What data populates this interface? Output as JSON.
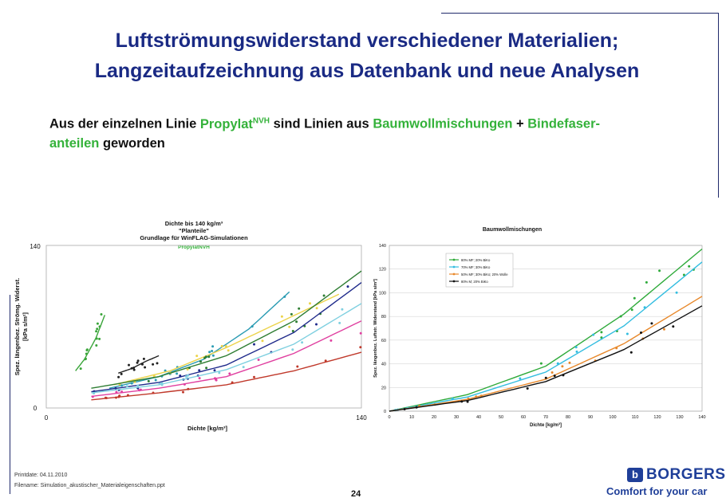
{
  "slide": {
    "title_line1": "Luftströmungswiderstand verschiedener Materialien;",
    "title_line2": "Langzeitaufzeichnung aus Datenbank und neue Analysen",
    "subtitle": {
      "p1": "Aus der einzelnen Linie ",
      "g1": "Propylat",
      "sup": "NVH",
      "p2": " sind Linien aus ",
      "g2": "Baumwollmischungen",
      "p3": " + ",
      "g3": "Bindefaser-",
      "g4": "anteilen",
      "p4": " geworden"
    },
    "print_date": "Printdate: 04.11.2010",
    "filename": "Filename: Simulation_akustischer_Materialeigenschaften.ppt",
    "page_number": "24",
    "logo_text": "BORGERS",
    "logo_mark": "b",
    "slogan": "Comfort for your car"
  },
  "chart_data": [
    {
      "type": "scatter",
      "title_lines": [
        "Dichte bis 140 kg/m³",
        "\"Planteile\"",
        "Grundlage für WinFLAG-Simulationen"
      ],
      "subtitle": "PropylatNVH",
      "xlabel": "Dichte [kg/m³]",
      "ylabel_lines": [
        "Spez. längenbez. Strömg. Widerst.",
        "[kPa s/m²]"
      ],
      "xlim": [
        0,
        140
      ],
      "ylim": [
        0,
        140
      ],
      "x_ticks": [
        "0",
        "140"
      ],
      "y_ticks": [
        "0",
        "140"
      ],
      "grid": false,
      "legend": "none",
      "series": [
        {
          "color": "#3aa53a",
          "x": [
            13,
            17,
            22,
            26
          ],
          "y": [
            32,
            42,
            60,
            80
          ]
        },
        {
          "color": "#222222",
          "x": [
            32,
            38,
            44,
            50
          ],
          "y": [
            30,
            34,
            40,
            45
          ]
        },
        {
          "color": "#2a9bb3",
          "x": [
            28,
            50,
            70,
            90,
            108
          ],
          "y": [
            17,
            27,
            42,
            68,
            100
          ]
        },
        {
          "color": "#ecd34a",
          "x": [
            30,
            55,
            80,
            105,
            130
          ],
          "y": [
            20,
            32,
            52,
            75,
            98
          ]
        },
        {
          "color": "#2e7d32",
          "x": [
            20,
            50,
            80,
            110,
            140
          ],
          "y": [
            17,
            27,
            45,
            75,
            118
          ]
        },
        {
          "color": "#1f2a8b",
          "x": [
            20,
            50,
            80,
            110,
            140
          ],
          "y": [
            14,
            22,
            37,
            65,
            108
          ]
        },
        {
          "color": "#7fd0e0",
          "x": [
            20,
            50,
            80,
            110,
            140
          ],
          "y": [
            13,
            20,
            33,
            55,
            90
          ]
        },
        {
          "color": "#e040a0",
          "x": [
            20,
            50,
            80,
            110,
            140
          ],
          "y": [
            10,
            17,
            27,
            47,
            75
          ]
        },
        {
          "color": "#c0392b",
          "x": [
            20,
            50,
            80,
            110,
            140
          ],
          "y": [
            7,
            13,
            20,
            32,
            48
          ]
        }
      ]
    },
    {
      "type": "scatter",
      "title": "Baumwollmischungen",
      "xlabel": "Dichte [kg/m³]",
      "ylabel": "Spez. längenbez. Luftstr. Widerstand [kPa s/m²]",
      "xlim": [
        0,
        140
      ],
      "ylim": [
        0,
        140
      ],
      "x_ticks": [
        "0",
        "10",
        "20",
        "30",
        "40",
        "50",
        "60",
        "70",
        "80",
        "90",
        "100",
        "110",
        "120",
        "130",
        "140"
      ],
      "y_ticks": [
        "0",
        "20",
        "40",
        "60",
        "80",
        "100",
        "120",
        "140"
      ],
      "grid": true,
      "legend": "top-left",
      "series": [
        {
          "name": "80% MF; 20% BiKo",
          "color": "#2eaa3a",
          "x": [
            0,
            35,
            70,
            105,
            140
          ],
          "y": [
            0,
            14,
            38,
            82,
            137
          ]
        },
        {
          "name": "70% MF; 30% BiKo",
          "color": "#33bde0",
          "x": [
            0,
            35,
            70,
            105,
            140
          ],
          "y": [
            0,
            12,
            33,
            72,
            126
          ]
        },
        {
          "name": "50% MF; 30% BiKo; 20% Wolle",
          "color": "#e8882a",
          "x": [
            0,
            35,
            70,
            105,
            140
          ],
          "y": [
            0,
            10,
            27,
            57,
            97
          ]
        },
        {
          "name": "80% M; 20% BiKo",
          "color": "#111111",
          "x": [
            0,
            35,
            70,
            105,
            140
          ],
          "y": [
            0,
            9,
            25,
            52,
            89
          ]
        }
      ]
    }
  ]
}
